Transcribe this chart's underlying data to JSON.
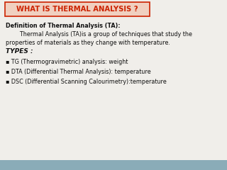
{
  "title": "WHAT IS THERMAL ANALYSIS ?",
  "title_color": "#cc2200",
  "title_box_fill": "#f0d0c0",
  "title_box_edge": "#cc2200",
  "bg_color": "#f0eeea",
  "bottom_bar_color": "#8aacb8",
  "body_color": "#111111",
  "line1": "Definition of Thermal Analysis (TA):",
  "line2": "        Thermal Analysis (TA)is a group of techniques that study the",
  "line3": "properties of materials as they change with temperature.",
  "line4": "TYPES :",
  "line5": "▪ TG (Thermogravimetric) analysis: weight",
  "line6": "▪ DTA (Differential Thermal Analysis): temperature",
  "line7": "▪ DSC (Differential Scanning Calourimetry):temperature"
}
